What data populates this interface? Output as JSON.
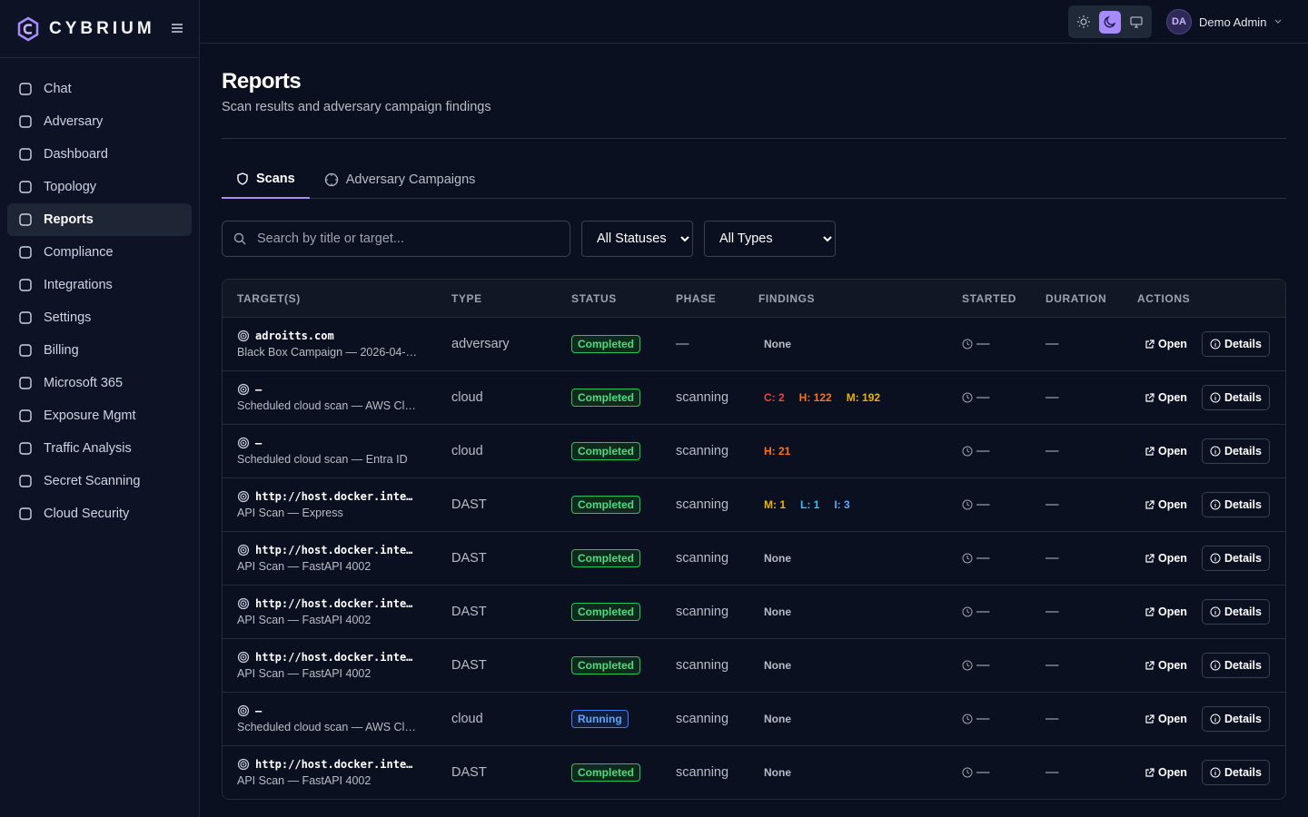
{
  "brand": "CYBRIUM",
  "nav": [
    "Chat",
    "Adversary",
    "Dashboard",
    "Topology",
    "Reports",
    "Compliance",
    "Integrations",
    "Settings",
    "Billing",
    "Microsoft 365",
    "Exposure Mgmt",
    "Traffic Analysis",
    "Secret Scanning",
    "Cloud Security"
  ],
  "user": {
    "initials": "DA",
    "name": "Demo Admin"
  },
  "page": {
    "title": "Reports",
    "subtitle": "Scan results and adversary campaign findings"
  },
  "tabs": [
    "Scans",
    "Adversary Campaigns"
  ],
  "filters": {
    "search_placeholder": "Search by title or target...",
    "status": "All Statuses",
    "type": "All Types"
  },
  "table": {
    "columns": [
      "TARGET(S)",
      "TYPE",
      "STATUS",
      "PHASE",
      "FINDINGS",
      "STARTED",
      "DURATION",
      "ACTIONS"
    ],
    "actions": [
      "Open",
      "Details"
    ],
    "rows": [
      {
        "target": "adroitts.com",
        "title": "Black Box Campaign — 2026-04-…",
        "type": "adversary",
        "status": "Completed",
        "phase": "—",
        "findings": "None",
        "started": "—",
        "duration": "—"
      },
      {
        "target": "–",
        "title": "Scheduled cloud scan — AWS Cl…",
        "type": "cloud",
        "status": "Completed",
        "phase": "scanning",
        "findings": [
          "C: 2",
          "H: 122",
          "M: 192"
        ],
        "started": "—",
        "duration": "—"
      },
      {
        "target": "–",
        "title": "Scheduled cloud scan — Entra ID",
        "type": "cloud",
        "status": "Completed",
        "phase": "scanning",
        "findings": [
          "H: 21"
        ],
        "started": "—",
        "duration": "—"
      },
      {
        "target": "http://host.docker.inte…",
        "title": "API Scan — Express",
        "type": "DAST",
        "status": "Completed",
        "phase": "scanning",
        "findings": [
          "M: 1",
          "L: 1",
          "I: 3"
        ],
        "started": "—",
        "duration": "—"
      },
      {
        "target": "http://host.docker.inte…",
        "title": "API Scan — FastAPI 4002",
        "type": "DAST",
        "status": "Completed",
        "phase": "scanning",
        "findings": "None",
        "started": "—",
        "duration": "—"
      },
      {
        "target": "http://host.docker.inte…",
        "title": "API Scan — FastAPI 4002",
        "type": "DAST",
        "status": "Completed",
        "phase": "scanning",
        "findings": "None",
        "started": "—",
        "duration": "—"
      },
      {
        "target": "http://host.docker.inte…",
        "title": "API Scan — FastAPI 4002",
        "type": "DAST",
        "status": "Completed",
        "phase": "scanning",
        "findings": "None",
        "started": "—",
        "duration": "—"
      },
      {
        "target": "–",
        "title": "Scheduled cloud scan — AWS Cl…",
        "type": "cloud",
        "status": "Running",
        "phase": "scanning",
        "findings": "None",
        "started": "—",
        "duration": "—"
      },
      {
        "target": "http://host.docker.inte…",
        "title": "API Scan — FastAPI 4002",
        "type": "DAST",
        "status": "Completed",
        "phase": "scanning",
        "findings": "None",
        "started": "—",
        "duration": "—"
      }
    ]
  }
}
